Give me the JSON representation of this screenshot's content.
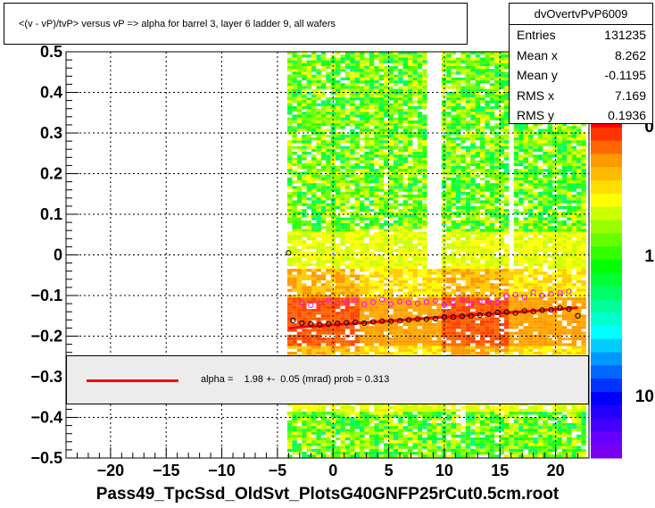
{
  "chart_data": {
    "type": "scatter",
    "title": "<(v - vP)/tvP> versus   vP => alpha for barrel 3, layer 6 ladder 9, all wafers",
    "xlabel": "",
    "ylabel": "",
    "xlim": [
      -24,
      23
    ],
    "ylim": [
      -0.5,
      0.5
    ],
    "x_ticks": [
      -20,
      -15,
      -10,
      -5,
      0,
      5,
      10,
      15,
      20
    ],
    "y_ticks": [
      0.5,
      0.4,
      0.3,
      0.2,
      0.1,
      0,
      -0.1,
      -0.2,
      -0.3,
      -0.4,
      -0.5
    ],
    "x_tick_labels": [
      "−20",
      "−15",
      "−10",
      "−5",
      "0",
      "5",
      "10",
      "15",
      "20"
    ],
    "y_tick_labels": [
      "0.5",
      "0.4",
      "0.3",
      "0.2",
      "0.1",
      "0",
      "−0.1",
      "−0.2",
      "−0.3",
      "−0.4",
      "−0.5"
    ],
    "grid": true,
    "z_scale": "log",
    "z_tick_labels": [
      "10",
      "1",
      "0"
    ],
    "series": [
      {
        "name": "",
        "marker": "open-circle",
        "color": "#000000",
        "x": [
          -3.6,
          -2.8,
          -2.0,
          -1.2,
          -0.4,
          0.4,
          1.2,
          2.0,
          2.8,
          3.6,
          4.4,
          5.2,
          6.0,
          6.8,
          7.6,
          8.4,
          9.2,
          10.0,
          10.8,
          11.6,
          12.4,
          13.2,
          14.0,
          14.8,
          15.6,
          16.4,
          17.2,
          18.0,
          18.8,
          19.6,
          20.4,
          21.2,
          22.0
        ],
        "y": [
          -0.161,
          -0.168,
          -0.17,
          -0.172,
          -0.17,
          -0.169,
          -0.167,
          -0.166,
          -0.168,
          -0.165,
          -0.163,
          -0.163,
          -0.162,
          -0.16,
          -0.158,
          -0.158,
          -0.157,
          -0.153,
          -0.153,
          -0.151,
          -0.15,
          -0.148,
          -0.146,
          -0.142,
          -0.141,
          -0.143,
          -0.138,
          -0.139,
          -0.136,
          -0.135,
          -0.131,
          -0.133,
          -0.15
        ]
      },
      {
        "name": "",
        "marker": "open-circle",
        "color": "#ff00ff",
        "x": [
          -2.8,
          -2.0,
          -1.2,
          -0.4,
          0.4,
          1.2,
          2.0,
          2.8,
          3.6,
          4.4,
          5.2,
          6.0,
          6.8,
          7.6,
          8.4,
          9.2,
          10.0,
          10.8,
          11.6,
          12.4,
          13.2,
          14.0,
          14.8,
          15.6,
          16.4,
          17.2,
          18.0,
          18.8,
          19.6,
          20.4,
          21.2
        ],
        "y": [
          -0.118,
          -0.124,
          -0.12,
          -0.112,
          -0.12,
          -0.117,
          -0.112,
          -0.122,
          -0.117,
          -0.11,
          -0.121,
          -0.115,
          -0.118,
          -0.12,
          -0.116,
          -0.113,
          -0.124,
          -0.118,
          -0.11,
          -0.122,
          -0.114,
          -0.115,
          -0.117,
          -0.102,
          -0.098,
          -0.105,
          -0.092,
          -0.1,
          -0.096,
          -0.093,
          -0.09
        ]
      },
      {
        "name": "",
        "marker": "open-circle",
        "color": "#000000",
        "x": [
          -4.0
        ],
        "y": [
          0.005
        ]
      }
    ],
    "fit": {
      "color": "#ff0000",
      "x": [
        -4.0,
        22.0
      ],
      "y": [
        -0.18,
        -0.13
      ]
    },
    "fit_label": "alpha =    1.98 +-  0.05 (mrad) prob = 0.313"
  },
  "stats": {
    "title": "dvOvertvPvP6009",
    "rows": [
      {
        "label": "Entries",
        "value": "131235"
      },
      {
        "label": "Mean x",
        "value": "8.262"
      },
      {
        "label": "Mean y",
        "value": "-0.1195"
      },
      {
        "label": "RMS x",
        "value": "7.169"
      },
      {
        "label": "RMS y",
        "value": "0.1936"
      }
    ]
  },
  "footer": "Pass49_TpcSsd_OldSvt_PlotsG40GNFP25rCut0.5cm.root"
}
